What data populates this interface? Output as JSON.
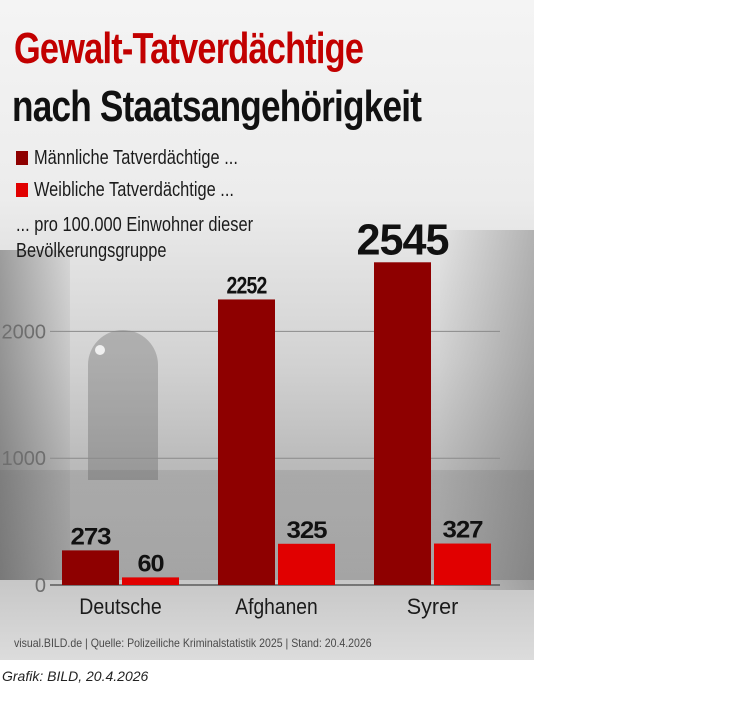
{
  "title_line1": "Gewalt-Tatverdächtige",
  "title_line2": "nach Staatsangehörigkeit",
  "note": "... pro 100.000 Einwohner dieser Bevölkerungsgruppe",
  "source": "visual.BILD.de | Quelle: Polizeiliche Kriminalstatistik 2025 | Stand: 20.4.2026",
  "credit": "Grafik: BILD, 20.4.2026",
  "colors": {
    "male": "#8e0000",
    "female": "#e10000",
    "title_red": "#c20000"
  },
  "chart_data": {
    "type": "bar",
    "categories": [
      "Deutsche",
      "Afghanen",
      "Syrer"
    ],
    "series": [
      {
        "name": "Männliche Tatverdächtige ...",
        "values": [
          273,
          2252,
          2545
        ]
      },
      {
        "name": "Weibliche Tatverdächtige ...",
        "values": [
          60,
          325,
          327
        ]
      }
    ],
    "yticks": [
      "0",
      "1000",
      "2000"
    ],
    "ylim": [
      0,
      3000
    ],
    "grid": true,
    "legend": "top-left"
  }
}
